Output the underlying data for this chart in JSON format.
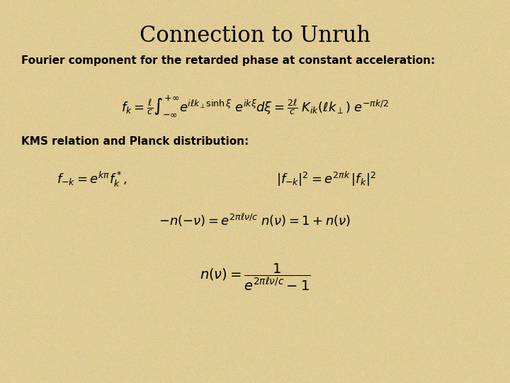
{
  "title": "Connection to Unruh",
  "title_fontsize": 22,
  "title_fontfamily": "serif",
  "background_color": "#E0CC96",
  "text_color": "#000000",
  "subtitle": "Fourier component for the retarded phase at constant acceleration:",
  "subtitle_fontsize": 11,
  "label2": "KMS relation and Planck distribution:",
  "label2_fontsize": 11,
  "eq1_fontsize": 13,
  "eq2_fontsize": 13,
  "eq3_fontsize": 13,
  "eq4_fontsize": 14
}
